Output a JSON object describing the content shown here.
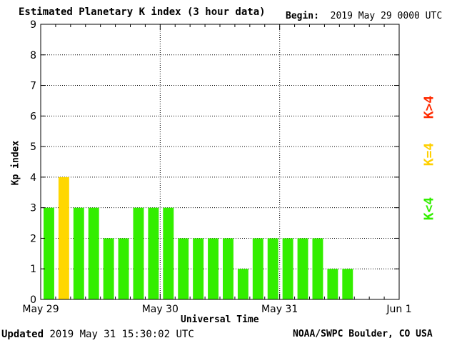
{
  "title": "Estimated Planetary K index (3 hour data)",
  "begin_label": "Begin:",
  "begin_value": "2019 May 29 0000 UTC",
  "updated_label": "Updated",
  "updated_value": "2019 May 31 15:30:02 UTC",
  "credit": "NOAA/SWPC Boulder, CO USA",
  "legend": {
    "greater": "K>4",
    "equal": "K=4",
    "less": "K<4"
  },
  "colors": {
    "less": "#33ee00",
    "equal": "#ffd700",
    "greater": "#ff2a00"
  },
  "chart_data": {
    "type": "bar",
    "title": "Estimated Planetary K index (3 hour data)",
    "xlabel": "Universal Time",
    "ylabel": "Kp index",
    "ylim": [
      0,
      9
    ],
    "yticks": [
      0,
      1,
      2,
      3,
      4,
      5,
      6,
      7,
      8,
      9
    ],
    "xticks": [
      "May 29",
      "May 30",
      "May 31",
      "Jun 1"
    ],
    "x": [
      "May 29 00:00",
      "May 29 03:00",
      "May 29 06:00",
      "May 29 09:00",
      "May 29 12:00",
      "May 29 15:00",
      "May 29 18:00",
      "May 29 21:00",
      "May 30 00:00",
      "May 30 03:00",
      "May 30 06:00",
      "May 30 09:00",
      "May 30 12:00",
      "May 30 15:00",
      "May 30 18:00",
      "May 30 21:00",
      "May 31 00:00",
      "May 31 03:00",
      "May 31 06:00",
      "May 31 09:00",
      "May 31 12:00"
    ],
    "values": [
      3,
      4,
      3,
      3,
      2,
      2,
      3,
      3,
      3,
      2,
      2,
      2,
      2,
      1,
      2,
      2,
      2,
      2,
      2,
      1,
      1
    ],
    "grid": true
  }
}
